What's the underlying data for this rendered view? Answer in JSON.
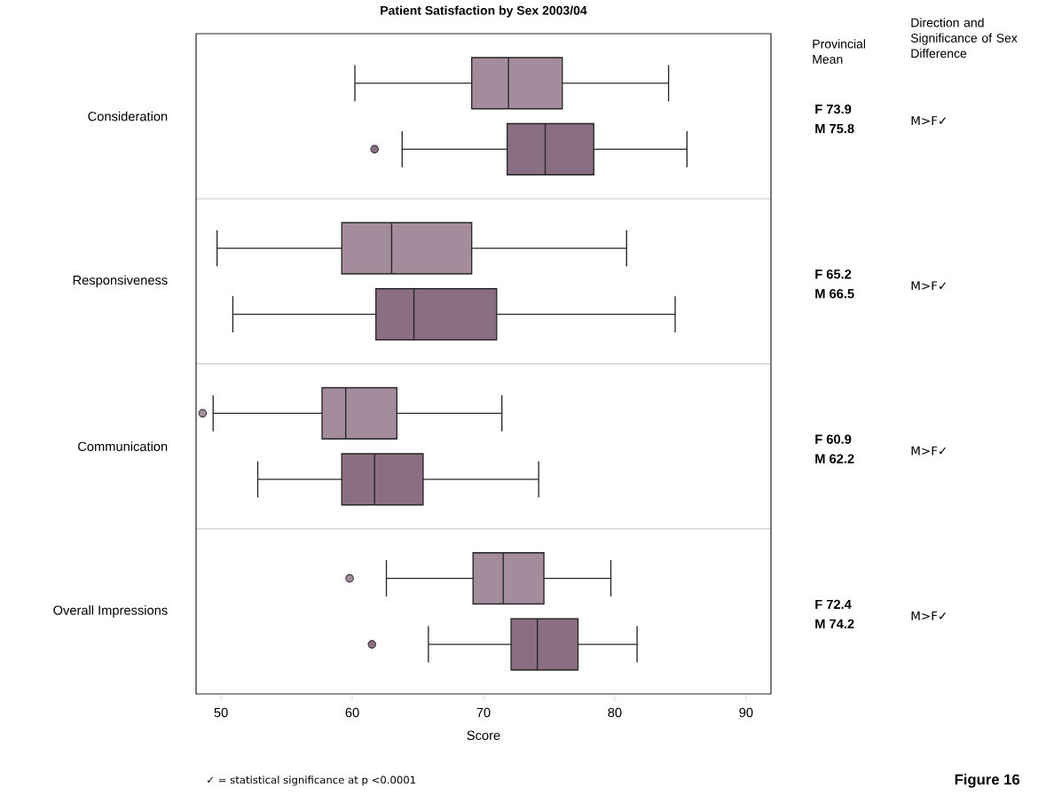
{
  "chart_data": {
    "type": "box",
    "orientation": "horizontal",
    "title": "Patient Satisfaction by Sex 2003/04",
    "xlabel": "Score",
    "categories": [
      "Consideration",
      "Responsiveness",
      "Communication",
      "Overall Impressions"
    ],
    "xlim": [
      48.1,
      91.9
    ],
    "xticks": [
      50,
      60,
      70,
      80,
      90
    ],
    "series": [
      {
        "color": "#a38c9c",
        "boxes": [
          {
            "low": 60.2,
            "q1": 69.1,
            "median": 71.9,
            "q3": 76.0,
            "high": 84.1
          },
          {
            "low": 49.7,
            "q1": 59.2,
            "median": 63.0,
            "q3": 69.1,
            "high": 80.9
          },
          {
            "low": 49.4,
            "q1": 57.7,
            "median": 59.5,
            "q3": 63.4,
            "high": 71.4,
            "outliers": [
              48.6
            ]
          },
          {
            "low": 62.6,
            "q1": 69.2,
            "median": 71.5,
            "q3": 74.6,
            "high": 79.7,
            "outliers": [
              59.8
            ]
          }
        ]
      },
      {
        "color": "#8a6f82",
        "boxes": [
          {
            "low": 63.8,
            "q1": 71.8,
            "median": 74.7,
            "q3": 78.4,
            "high": 85.5,
            "outliers": [
              61.7
            ]
          },
          {
            "low": 50.9,
            "q1": 61.8,
            "median": 64.7,
            "q3": 71.0,
            "high": 84.6
          },
          {
            "low": 52.8,
            "q1": 59.2,
            "median": 61.7,
            "q3": 65.4,
            "high": 74.2
          },
          {
            "low": 65.8,
            "q1": 72.1,
            "median": 74.1,
            "q3": 77.2,
            "high": 81.7,
            "outliers": [
              61.5
            ]
          }
        ]
      }
    ],
    "annotations": [
      "Provincial Mean",
      "Direction and Significance of Sex Difference",
      "F  73.9",
      "M  75.8",
      "M>F✓",
      "F  65.2",
      "M  66.5",
      "M>F✓",
      "F  60.9",
      "M  62.2",
      "M>F✓",
      "F  72.4",
      "M  74.2",
      "M>F✓",
      "✓ = statistical significance at p <0.0001",
      "Figure 16"
    ]
  }
}
